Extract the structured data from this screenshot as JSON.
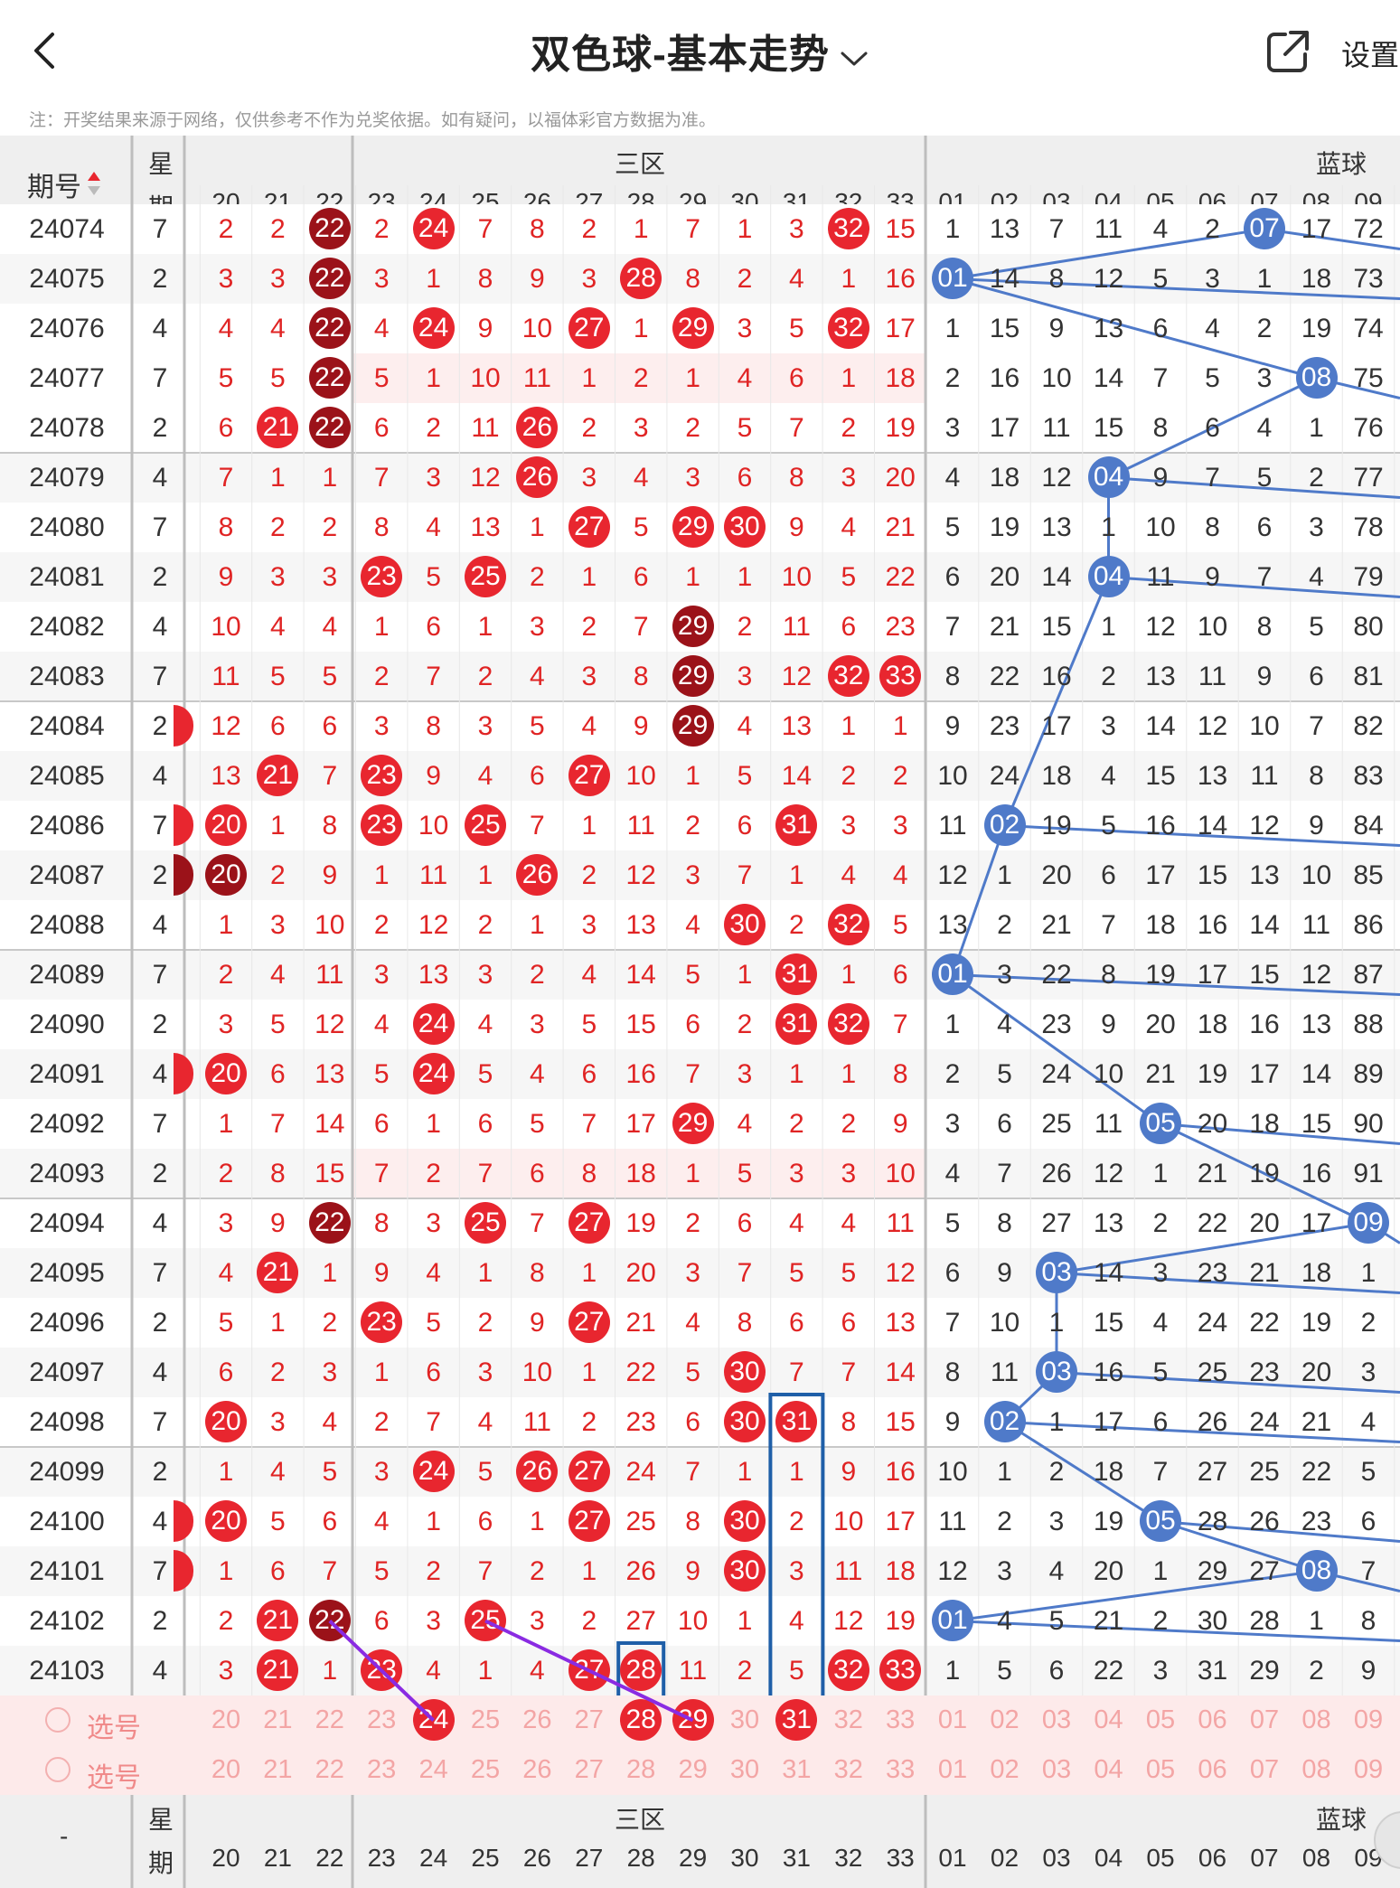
{
  "header": {
    "title": "双色球-基本走势",
    "settings_label": "设置"
  },
  "notice": "注：开奖结果来源于网络，仅供参考不作为兑奖依据。如有疑问，以福体彩官方数据为准。",
  "table": {
    "issue_header": "期号",
    "weekday_header_top": "星",
    "weekday_header_bottom": "期",
    "zone3_label": "三区",
    "blue_label": "蓝球",
    "red_columns": [
      "20",
      "21",
      "22",
      "23",
      "24",
      "25",
      "26",
      "27",
      "28",
      "29",
      "30",
      "31",
      "32",
      "33"
    ],
    "blue_columns": [
      "01",
      "02",
      "03",
      "04",
      "05",
      "06",
      "07",
      "08",
      "09"
    ],
    "rows": [
      {
        "issue": "24074",
        "wd": "7",
        "red": [
          "2",
          "2",
          "22",
          "2",
          "24",
          "7",
          "8",
          "2",
          "1",
          "7",
          "1",
          "3",
          "32",
          "15"
        ],
        "blue": [
          "1",
          "13",
          "7",
          "11",
          "4",
          "2",
          "07",
          "17",
          "72"
        ]
      },
      {
        "issue": "24075",
        "wd": "2",
        "red": [
          "3",
          "3",
          "22",
          "3",
          "1",
          "8",
          "9",
          "3",
          "28",
          "8",
          "2",
          "4",
          "1",
          "16"
        ],
        "blue": [
          "01",
          "14",
          "8",
          "12",
          "5",
          "3",
          "1",
          "18",
          "73"
        ]
      },
      {
        "issue": "24076",
        "wd": "4",
        "red": [
          "4",
          "4",
          "22",
          "4",
          "24",
          "9",
          "10",
          "27",
          "1",
          "29",
          "3",
          "5",
          "32",
          "17"
        ],
        "blue": [
          "1",
          "15",
          "9",
          "13",
          "6",
          "4",
          "2",
          "19",
          "74"
        ]
      },
      {
        "issue": "24077",
        "wd": "7",
        "red": [
          "5",
          "5",
          "22",
          "5",
          "1",
          "10",
          "11",
          "1",
          "2",
          "1",
          "4",
          "6",
          "1",
          "18"
        ],
        "blue": [
          "2",
          "16",
          "10",
          "14",
          "7",
          "5",
          "3",
          "08",
          "75"
        ]
      },
      {
        "issue": "24078",
        "wd": "2",
        "red": [
          "6",
          "21",
          "22",
          "6",
          "2",
          "11",
          "26",
          "2",
          "3",
          "2",
          "5",
          "7",
          "2",
          "19"
        ],
        "blue": [
          "3",
          "17",
          "11",
          "15",
          "8",
          "6",
          "4",
          "1",
          "76"
        ]
      },
      {
        "issue": "24079",
        "wd": "4",
        "red": [
          "7",
          "1",
          "1",
          "7",
          "3",
          "12",
          "26",
          "3",
          "4",
          "3",
          "6",
          "8",
          "3",
          "20"
        ],
        "blue": [
          "4",
          "18",
          "12",
          "04",
          "9",
          "7",
          "5",
          "2",
          "77"
        ]
      },
      {
        "issue": "24080",
        "wd": "7",
        "red": [
          "8",
          "2",
          "2",
          "8",
          "4",
          "13",
          "1",
          "27",
          "5",
          "29",
          "30",
          "9",
          "4",
          "21"
        ],
        "blue": [
          "5",
          "19",
          "13",
          "1",
          "10",
          "8",
          "6",
          "3",
          "78"
        ]
      },
      {
        "issue": "24081",
        "wd": "2",
        "red": [
          "9",
          "3",
          "3",
          "23",
          "5",
          "25",
          "2",
          "1",
          "6",
          "1",
          "1",
          "10",
          "5",
          "22"
        ],
        "blue": [
          "6",
          "20",
          "14",
          "04",
          "11",
          "9",
          "7",
          "4",
          "79"
        ]
      },
      {
        "issue": "24082",
        "wd": "4",
        "red": [
          "10",
          "4",
          "4",
          "1",
          "6",
          "1",
          "3",
          "2",
          "7",
          "29",
          "2",
          "11",
          "6",
          "23"
        ],
        "blue": [
          "7",
          "21",
          "15",
          "1",
          "12",
          "10",
          "8",
          "5",
          "80"
        ]
      },
      {
        "issue": "24083",
        "wd": "7",
        "red": [
          "11",
          "5",
          "5",
          "2",
          "7",
          "2",
          "4",
          "3",
          "8",
          "29",
          "3",
          "12",
          "32",
          "33"
        ],
        "blue": [
          "8",
          "22",
          "16",
          "2",
          "13",
          "11",
          "9",
          "6",
          "81"
        ]
      },
      {
        "issue": "24084",
        "wd": "2",
        "red": [
          "12",
          "6",
          "6",
          "3",
          "8",
          "3",
          "5",
          "4",
          "9",
          "29",
          "4",
          "13",
          "1",
          "1"
        ],
        "blue": [
          "9",
          "23",
          "17",
          "3",
          "14",
          "12",
          "10",
          "7",
          "82"
        ]
      },
      {
        "issue": "24085",
        "wd": "4",
        "red": [
          "13",
          "21",
          "7",
          "23",
          "9",
          "4",
          "6",
          "27",
          "10",
          "1",
          "5",
          "14",
          "2",
          "2"
        ],
        "blue": [
          "10",
          "24",
          "18",
          "4",
          "15",
          "13",
          "11",
          "8",
          "83"
        ]
      },
      {
        "issue": "24086",
        "wd": "7",
        "red": [
          "20",
          "1",
          "8",
          "23",
          "10",
          "25",
          "7",
          "1",
          "11",
          "2",
          "6",
          "31",
          "3",
          "3"
        ],
        "blue": [
          "11",
          "02",
          "19",
          "5",
          "16",
          "14",
          "12",
          "9",
          "84"
        ]
      },
      {
        "issue": "24087",
        "wd": "2",
        "red": [
          "20",
          "2",
          "9",
          "1",
          "11",
          "1",
          "26",
          "2",
          "12",
          "3",
          "7",
          "1",
          "4",
          "4"
        ],
        "blue": [
          "12",
          "1",
          "20",
          "6",
          "17",
          "15",
          "13",
          "10",
          "85"
        ]
      },
      {
        "issue": "24088",
        "wd": "4",
        "red": [
          "1",
          "3",
          "10",
          "2",
          "12",
          "2",
          "1",
          "3",
          "13",
          "4",
          "30",
          "2",
          "32",
          "5"
        ],
        "blue": [
          "13",
          "2",
          "21",
          "7",
          "18",
          "16",
          "14",
          "11",
          "86"
        ]
      },
      {
        "issue": "24089",
        "wd": "7",
        "red": [
          "2",
          "4",
          "11",
          "3",
          "13",
          "3",
          "2",
          "4",
          "14",
          "5",
          "1",
          "31",
          "1",
          "6"
        ],
        "blue": [
          "01",
          "3",
          "22",
          "8",
          "19",
          "17",
          "15",
          "12",
          "87"
        ]
      },
      {
        "issue": "24090",
        "wd": "2",
        "red": [
          "3",
          "5",
          "12",
          "4",
          "24",
          "4",
          "3",
          "5",
          "15",
          "6",
          "2",
          "31",
          "32",
          "7"
        ],
        "blue": [
          "1",
          "4",
          "23",
          "9",
          "20",
          "18",
          "16",
          "13",
          "88"
        ]
      },
      {
        "issue": "24091",
        "wd": "4",
        "red": [
          "20",
          "6",
          "13",
          "5",
          "24",
          "5",
          "4",
          "6",
          "16",
          "7",
          "3",
          "1",
          "1",
          "8"
        ],
        "blue": [
          "2",
          "5",
          "24",
          "10",
          "21",
          "19",
          "17",
          "14",
          "89"
        ]
      },
      {
        "issue": "24092",
        "wd": "7",
        "red": [
          "1",
          "7",
          "14",
          "6",
          "1",
          "6",
          "5",
          "7",
          "17",
          "29",
          "4",
          "2",
          "2",
          "9"
        ],
        "blue": [
          "3",
          "6",
          "25",
          "11",
          "05",
          "20",
          "18",
          "15",
          "90"
        ]
      },
      {
        "issue": "24093",
        "wd": "2",
        "red": [
          "2",
          "8",
          "15",
          "7",
          "2",
          "7",
          "6",
          "8",
          "18",
          "1",
          "5",
          "3",
          "3",
          "10"
        ],
        "blue": [
          "4",
          "7",
          "26",
          "12",
          "1",
          "21",
          "19",
          "16",
          "91"
        ]
      },
      {
        "issue": "24094",
        "wd": "4",
        "red": [
          "3",
          "9",
          "22",
          "8",
          "3",
          "25",
          "7",
          "27",
          "19",
          "2",
          "6",
          "4",
          "4",
          "11"
        ],
        "blue": [
          "5",
          "8",
          "27",
          "13",
          "2",
          "22",
          "20",
          "17",
          "09"
        ]
      },
      {
        "issue": "24095",
        "wd": "7",
        "red": [
          "4",
          "21",
          "1",
          "9",
          "4",
          "1",
          "8",
          "1",
          "20",
          "3",
          "7",
          "5",
          "5",
          "12"
        ],
        "blue": [
          "6",
          "9",
          "03",
          "14",
          "3",
          "23",
          "21",
          "18",
          "1"
        ]
      },
      {
        "issue": "24096",
        "wd": "2",
        "red": [
          "5",
          "1",
          "2",
          "23",
          "5",
          "2",
          "9",
          "27",
          "21",
          "4",
          "8",
          "6",
          "6",
          "13"
        ],
        "blue": [
          "7",
          "10",
          "1",
          "15",
          "4",
          "24",
          "22",
          "19",
          "2"
        ]
      },
      {
        "issue": "24097",
        "wd": "4",
        "red": [
          "6",
          "2",
          "3",
          "1",
          "6",
          "3",
          "10",
          "1",
          "22",
          "5",
          "30",
          "7",
          "7",
          "14"
        ],
        "blue": [
          "8",
          "11",
          "03",
          "16",
          "5",
          "25",
          "23",
          "20",
          "3"
        ]
      },
      {
        "issue": "24098",
        "wd": "7",
        "red": [
          "20",
          "3",
          "4",
          "2",
          "7",
          "4",
          "11",
          "2",
          "23",
          "6",
          "30",
          "31",
          "8",
          "15"
        ],
        "blue": [
          "9",
          "02",
          "1",
          "17",
          "6",
          "26",
          "24",
          "21",
          "4"
        ]
      },
      {
        "issue": "24099",
        "wd": "2",
        "red": [
          "1",
          "4",
          "5",
          "3",
          "24",
          "5",
          "26",
          "27",
          "24",
          "7",
          "1",
          "1",
          "9",
          "16"
        ],
        "blue": [
          "10",
          "1",
          "2",
          "18",
          "7",
          "27",
          "25",
          "22",
          "5"
        ]
      },
      {
        "issue": "24100",
        "wd": "4",
        "red": [
          "20",
          "5",
          "6",
          "4",
          "1",
          "6",
          "1",
          "27",
          "25",
          "8",
          "30",
          "2",
          "10",
          "17"
        ],
        "blue": [
          "11",
          "2",
          "3",
          "19",
          "05",
          "28",
          "26",
          "23",
          "6"
        ]
      },
      {
        "issue": "24101",
        "wd": "7",
        "red": [
          "1",
          "6",
          "7",
          "5",
          "2",
          "7",
          "2",
          "1",
          "26",
          "9",
          "30",
          "3",
          "11",
          "18"
        ],
        "blue": [
          "12",
          "3",
          "4",
          "20",
          "1",
          "29",
          "27",
          "08",
          "7"
        ]
      },
      {
        "issue": "24102",
        "wd": "2",
        "red": [
          "2",
          "21",
          "22",
          "6",
          "3",
          "25",
          "3",
          "2",
          "27",
          "10",
          "1",
          "4",
          "12",
          "19"
        ],
        "blue": [
          "01",
          "4",
          "5",
          "21",
          "2",
          "30",
          "28",
          "1",
          "8"
        ]
      },
      {
        "issue": "24103",
        "wd": "4",
        "red": [
          "3",
          "21",
          "1",
          "23",
          "4",
          "1",
          "4",
          "27",
          "28",
          "11",
          "2",
          "5",
          "32",
          "33"
        ],
        "blue": [
          "1",
          "5",
          "6",
          "22",
          "3",
          "31",
          "29",
          "2",
          "9"
        ]
      }
    ],
    "select_label": "选号",
    "footer_dash": "-",
    "colors": {
      "red_ball": "#e8262f",
      "dark_ball": "#9b1219",
      "blue_ball": "#4f7ac9",
      "red_text": "#e02424",
      "header_bg": "#efefef",
      "select_bg": "#fdeaea"
    }
  }
}
